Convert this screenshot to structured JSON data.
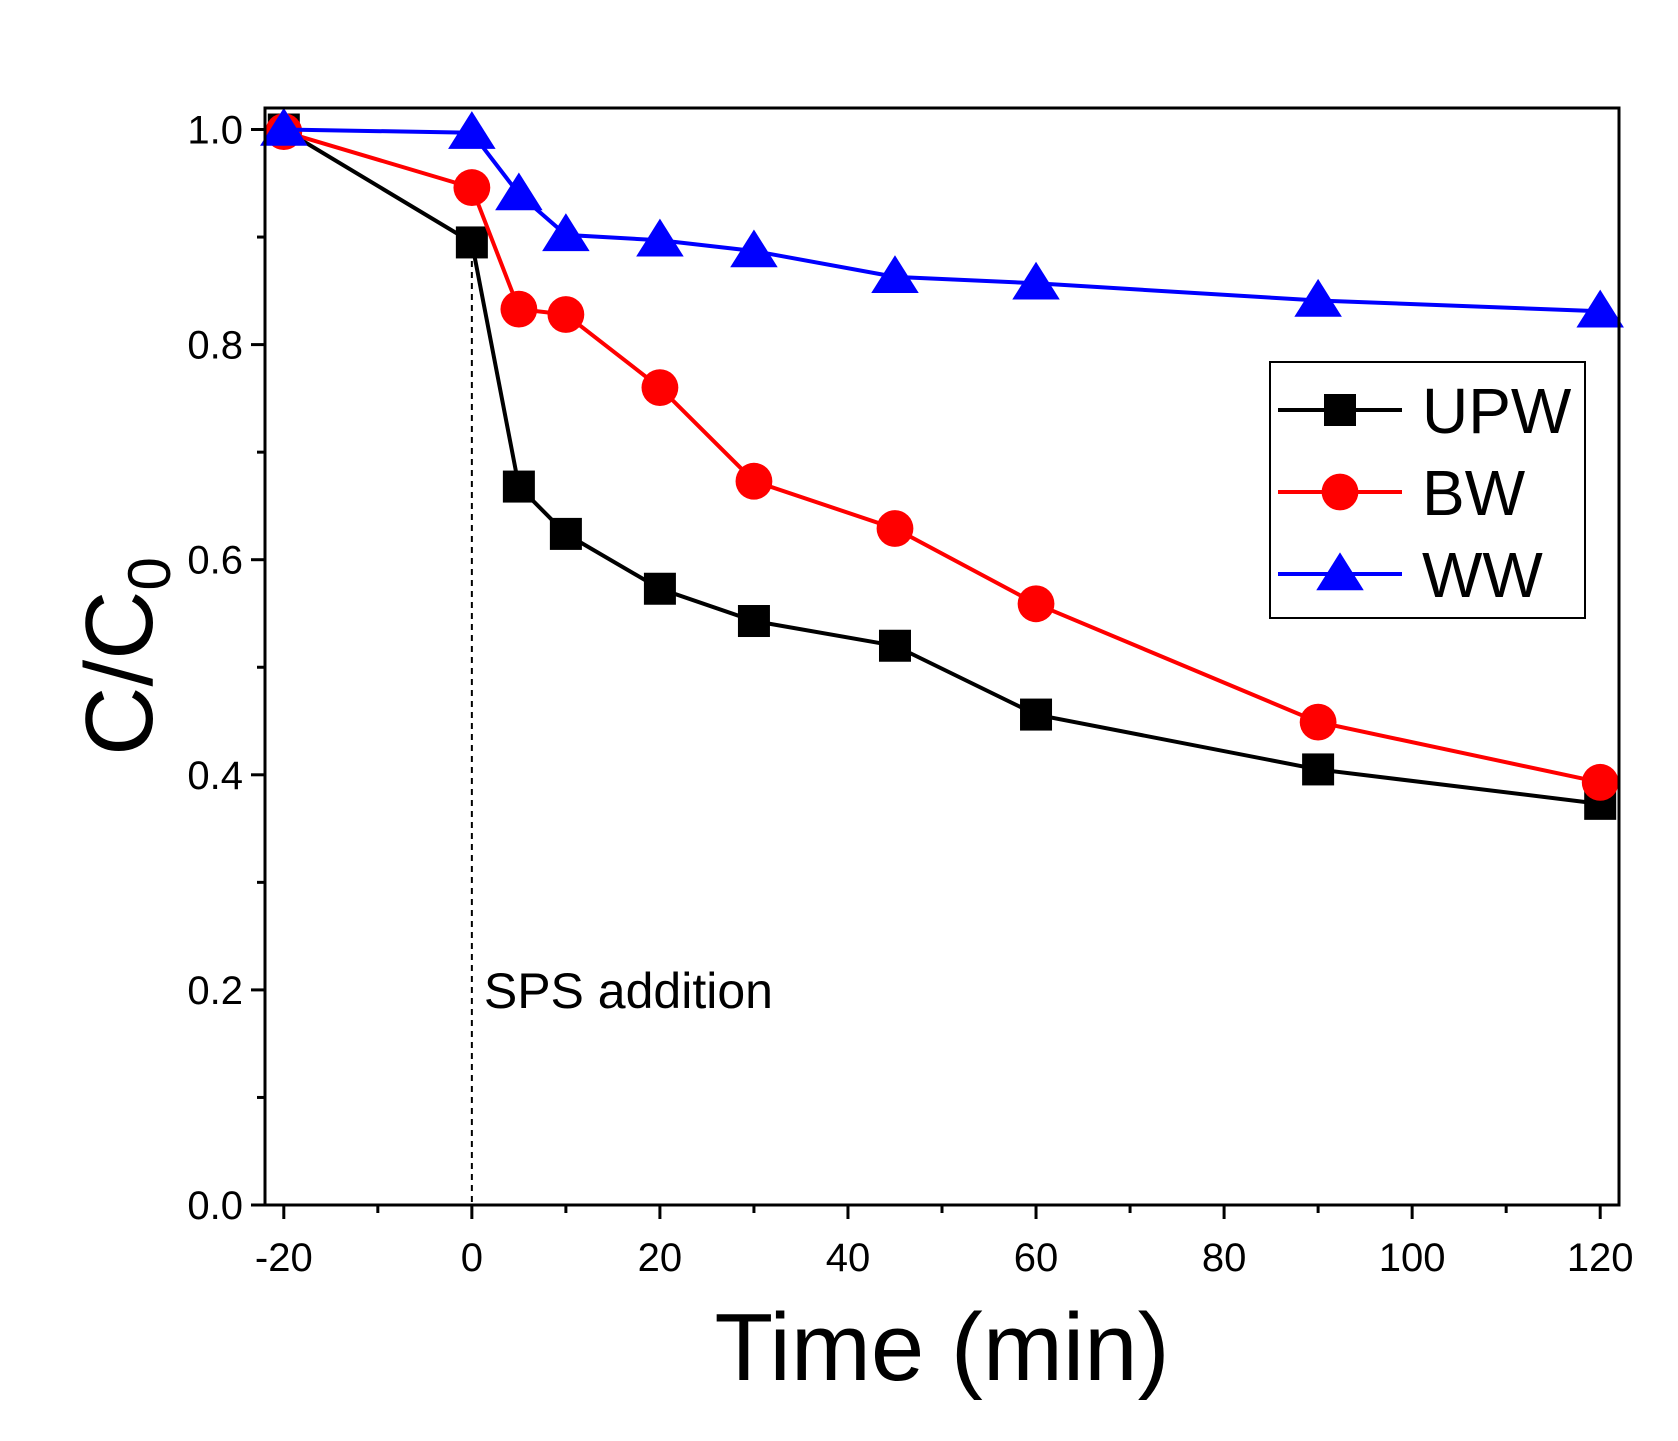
{
  "chart_data": {
    "type": "line",
    "title": "",
    "xlabel": "Time (min)",
    "ylabel_main": "C/C",
    "ylabel_sub": "0",
    "xlim": [
      -22,
      122
    ],
    "ylim": [
      0,
      1.02
    ],
    "xticks": [
      -20,
      0,
      20,
      40,
      60,
      80,
      100,
      120
    ],
    "xtick_labels": [
      "-20",
      "0",
      "20",
      "40",
      "60",
      "80",
      "100",
      "120"
    ],
    "yticks": [
      0.0,
      0.2,
      0.4,
      0.6,
      0.8,
      1.0
    ],
    "ytick_labels": [
      "0.0",
      "0.2",
      "0.4",
      "0.6",
      "0.8",
      "1.0"
    ],
    "x_minor_step": 10,
    "y_minor_step": 0.1,
    "grid": false,
    "legend_position": "right",
    "annotation": {
      "text": "SPS addition",
      "x": 0
    },
    "series": [
      {
        "name": "UPW",
        "color": "#000000",
        "marker": "square",
        "x": [
          -20,
          0,
          5,
          10,
          20,
          30,
          45,
          60,
          90,
          120
        ],
        "y": [
          1.0,
          0.895,
          0.668,
          0.624,
          0.573,
          0.543,
          0.52,
          0.456,
          0.405,
          0.373
        ]
      },
      {
        "name": "BW",
        "color": "#ff0000",
        "marker": "circle",
        "x": [
          -20,
          0,
          5,
          10,
          20,
          30,
          45,
          60,
          90,
          120
        ],
        "y": [
          0.998,
          0.946,
          0.833,
          0.828,
          0.76,
          0.673,
          0.629,
          0.559,
          0.449,
          0.393
        ]
      },
      {
        "name": "WW",
        "color": "#0000ff",
        "marker": "triangle",
        "x": [
          -20,
          0,
          5,
          10,
          20,
          30,
          45,
          60,
          90,
          120
        ],
        "y": [
          1.0,
          0.997,
          0.94,
          0.902,
          0.897,
          0.887,
          0.863,
          0.857,
          0.841,
          0.831
        ]
      }
    ]
  }
}
